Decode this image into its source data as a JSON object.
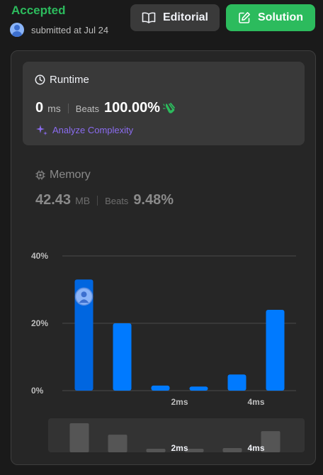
{
  "header": {
    "status": "Accepted",
    "submitted": "submitted at Jul 24",
    "editorial_label": "Editorial",
    "solution_label": "Solution"
  },
  "runtime": {
    "title": "Runtime",
    "value": "0",
    "unit": "ms",
    "beats_label": "Beats",
    "beats_value": "100.00%",
    "analyze_label": "Analyze Complexity"
  },
  "memory": {
    "title": "Memory",
    "value": "42.43",
    "unit": "MB",
    "beats_label": "Beats",
    "beats_value": "9.48%"
  },
  "colors": {
    "accepted": "#2cbb5d",
    "bar": "#007aff",
    "analyze": "#8b6cf0"
  },
  "chart_data": {
    "type": "bar",
    "yticks": [
      "40%",
      "20%",
      "0%"
    ],
    "ylim": [
      0,
      40
    ],
    "xlabels": [
      {
        "at": 2,
        "text": "2ms"
      },
      {
        "at": 4,
        "text": "4ms"
      }
    ],
    "values": [
      33,
      20,
      1.5,
      1.2,
      4.8,
      24
    ],
    "highlight_index": 0,
    "mini_values": [
      33,
      20,
      1.5,
      1.2,
      4.8,
      24
    ]
  }
}
